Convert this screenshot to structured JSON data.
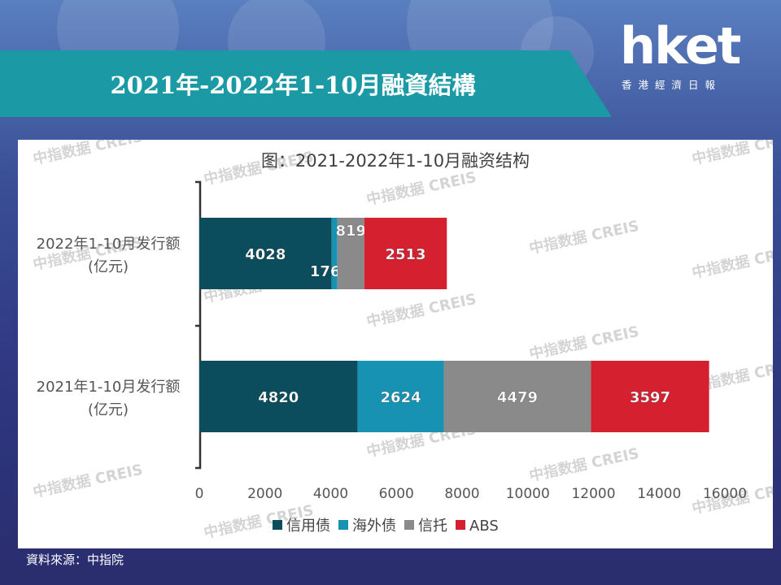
{
  "header": {
    "title": "2021年-2022年1-10月融資結構",
    "logo_text": "hket",
    "logo_subtext": "香港經濟日報"
  },
  "footer": {
    "source": "資料來源：中指院"
  },
  "watermark": "中指数据 CREIS",
  "colors": {
    "banner": "#1b9aa6",
    "background": "#2e3780"
  },
  "chart_data": {
    "type": "bar",
    "orientation": "horizontal",
    "stacked": true,
    "title": "图：2021-2022年1-10月融资结构",
    "categories": [
      {
        "line1": "2022年1-10月发行额",
        "line2": "(亿元)"
      },
      {
        "line1": "2021年1-10月发行额",
        "line2": "(亿元)"
      }
    ],
    "series": [
      {
        "name": "信用债",
        "color": "#0b4d5c",
        "label_color": "#ffffff",
        "values": [
          4028,
          4820
        ]
      },
      {
        "name": "海外债",
        "color": "#1792b2",
        "label_color": "#ffffff",
        "values": [
          176,
          2624
        ]
      },
      {
        "name": "信托",
        "color": "#8a8a8a",
        "label_color": "#ffffff",
        "values": [
          819,
          4479
        ]
      },
      {
        "name": "ABS",
        "color": "#d4202f",
        "label_color": "#ffffff",
        "values": [
          2513,
          3597
        ]
      }
    ],
    "xlim": [
      0,
      16000
    ],
    "xticks": [
      0,
      2000,
      4000,
      6000,
      8000,
      10000,
      12000,
      14000,
      16000
    ],
    "legend_position": "bottom",
    "grid": false
  }
}
